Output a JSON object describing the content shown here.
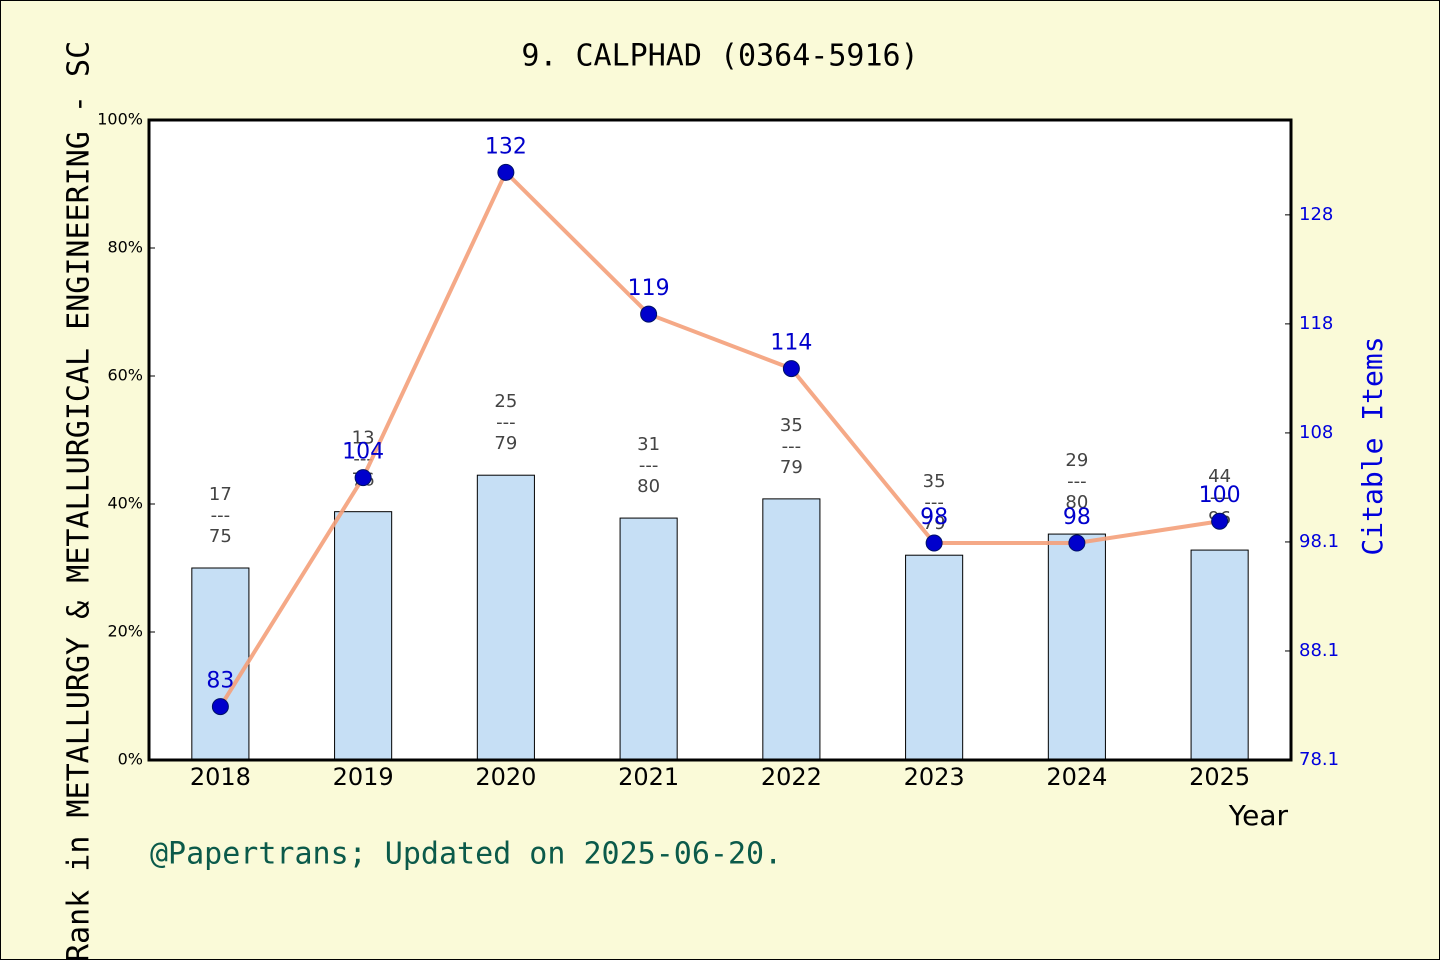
{
  "chart_data": {
    "type": "bar_line",
    "title": "9. CALPHAD (0364-5916)",
    "y_label": "Rank in METALLURGY & METALLURGICAL ENGINEERING - SC",
    "y2_label": "Citable Items",
    "x_label": "Year",
    "footer": "@Papertrans; Updated on 2025-06-20.",
    "categories": [
      "2018",
      "2019",
      "2020",
      "2021",
      "2022",
      "2023",
      "2024",
      "2025"
    ],
    "series": [
      {
        "type": "bar",
        "color": "#c6dff5",
        "values": [
          30.0,
          38.8,
          44.5,
          37.8,
          40.8,
          32.0,
          35.3,
          32.8
        ],
        "ranks": [
          17,
          13,
          25,
          31,
          35,
          35,
          29,
          44
        ],
        "totals": [
          75,
          76,
          79,
          80,
          79,
          79,
          80,
          96
        ],
        "separator": "---"
      },
      {
        "type": "line",
        "axis": "y2",
        "color": "#f4a07a",
        "marker_color": "#0000cc",
        "label_color": "#0000cc",
        "values": [
          83,
          104,
          132,
          119,
          114,
          98,
          98,
          100
        ]
      }
    ],
    "ylim": [
      0,
      100
    ],
    "yticks": [
      {
        "value": 0,
        "label": "0%"
      },
      {
        "value": 20,
        "label": "20%"
      },
      {
        "value": 40,
        "label": "40%"
      },
      {
        "value": 60,
        "label": "60%"
      },
      {
        "value": 80,
        "label": "80%"
      },
      {
        "value": 100,
        "label": "100%"
      }
    ],
    "y2lim": [
      78.1,
      136.8
    ],
    "y2ticks": [
      78.1,
      88.1,
      98.1,
      {
        "value": 108.1,
        "label": "108"
      },
      {
        "value": 118.1,
        "label": "118"
      },
      {
        "value": 128.1,
        "label": "128"
      }
    ]
  }
}
